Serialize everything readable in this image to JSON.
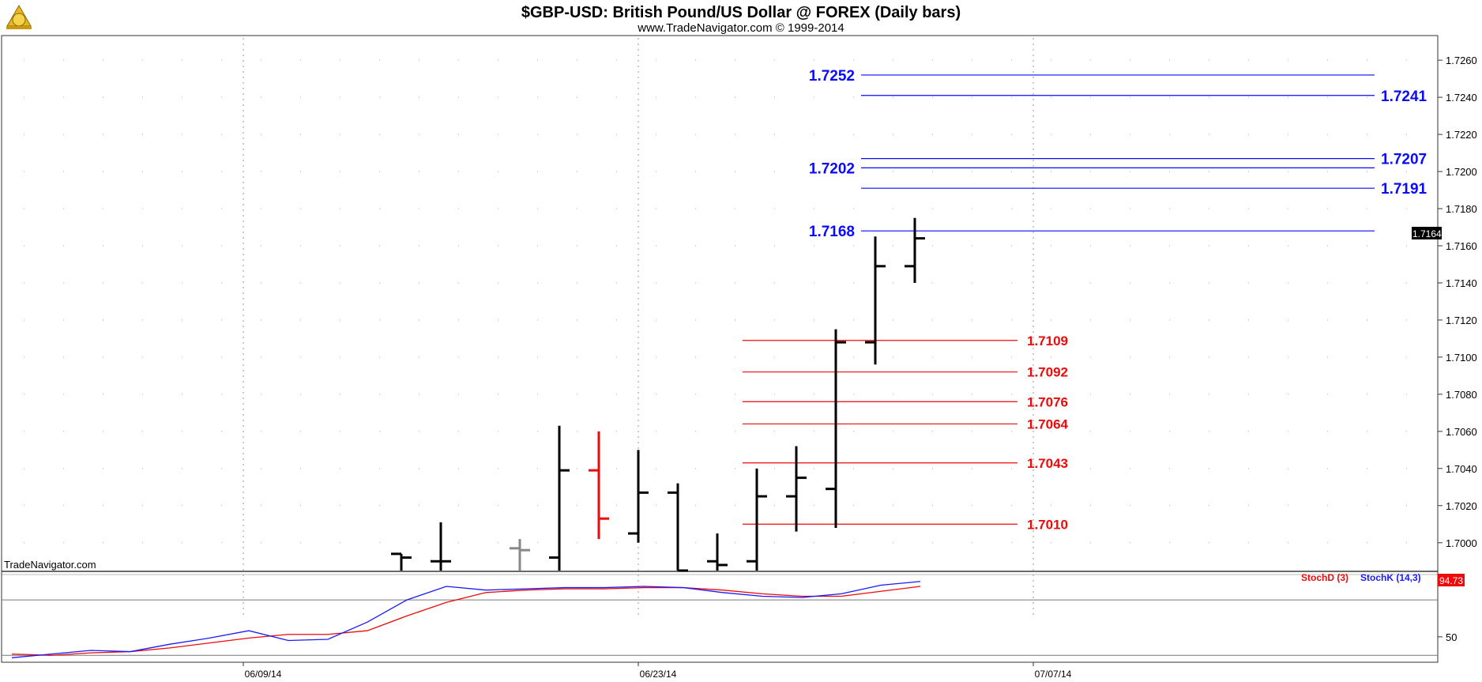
{
  "header": {
    "title": "$GBP-USD:  British Pound/US Dollar @ FOREX  (Daily bars)",
    "subtitle": "www.TradeNavigator.com © 1999-2014"
  },
  "watermark": "TradeNavigator.com",
  "colors": {
    "bar": "#000000",
    "bar_down": "#ee0a0a",
    "bar_inside": "#888888",
    "resistance": "#0a0aff",
    "support": "#ee0a0a",
    "stoch_d": "#ee0a0a",
    "stoch_k": "#1a1aff",
    "grid": "#999999"
  },
  "chart_data": {
    "type": "ohlc",
    "price_axis": {
      "ylim": [
        1.6985,
        1.7269
      ],
      "ticks": [
        "1.7260",
        "1.7240",
        "1.7220",
        "1.7200",
        "1.7180",
        "1.7160",
        "1.7140",
        "1.7120",
        "1.7100",
        "1.7080",
        "1.7060",
        "1.7040",
        "1.7020",
        "1.7000"
      ]
    },
    "last_price": "1.7164",
    "x_labels": [
      {
        "label": "06/09/14",
        "bar": 6
      },
      {
        "label": "06/23/14",
        "bar": 16
      },
      {
        "label": "07/07/14",
        "bar": 26
      }
    ],
    "bars": [
      {
        "i": 10,
        "open": 1.6994,
        "high": 1.6994,
        "low": 1.6985,
        "close": 1.6992,
        "color": "black"
      },
      {
        "i": 11,
        "open": 1.699,
        "high": 1.7011,
        "low": 1.6985,
        "close": 1.699,
        "color": "black"
      },
      {
        "i": 13,
        "open": 1.6997,
        "high": 1.7002,
        "low": 1.6985,
        "close": 1.6996,
        "color": "gray"
      },
      {
        "i": 14,
        "open": 1.6992,
        "high": 1.7063,
        "low": 1.6985,
        "close": 1.7039,
        "color": "black"
      },
      {
        "i": 15,
        "open": 1.7039,
        "high": 1.706,
        "low": 1.7002,
        "close": 1.7013,
        "color": "red"
      },
      {
        "i": 16,
        "open": 1.7005,
        "high": 1.705,
        "low": 1.7,
        "close": 1.7027,
        "color": "black"
      },
      {
        "i": 17,
        "open": 1.7027,
        "high": 1.7032,
        "low": 1.6985,
        "close": 1.6985,
        "color": "black"
      },
      {
        "i": 18,
        "open": 1.699,
        "high": 1.7005,
        "low": 1.6985,
        "close": 1.6988,
        "color": "black"
      },
      {
        "i": 19,
        "open": 1.699,
        "high": 1.704,
        "low": 1.6985,
        "close": 1.7025,
        "color": "black"
      },
      {
        "i": 20,
        "open": 1.7025,
        "high": 1.7052,
        "low": 1.7006,
        "close": 1.7035,
        "color": "black"
      },
      {
        "i": 21,
        "open": 1.7029,
        "high": 1.7115,
        "low": 1.7008,
        "close": 1.7108,
        "color": "black"
      },
      {
        "i": 22,
        "open": 1.7108,
        "high": 1.7165,
        "low": 1.7096,
        "close": 1.7149,
        "color": "black"
      },
      {
        "i": 23,
        "open": 1.7149,
        "high": 1.7175,
        "low": 1.714,
        "close": 1.7164,
        "color": "black"
      }
    ],
    "resistance_levels": [
      {
        "value": "1.7252",
        "start_bar": 21.0,
        "label_side": "left"
      },
      {
        "value": "1.7241",
        "start_bar": 21.0,
        "label_side": "right"
      },
      {
        "value": "1.7207",
        "start_bar": 21.0,
        "label_side": "right"
      },
      {
        "value": "1.7202",
        "start_bar": 21.0,
        "label_side": "left"
      },
      {
        "value": "1.7191",
        "start_bar": 21.0,
        "label_side": "right"
      },
      {
        "value": "1.7168",
        "start_bar": 21.0,
        "label_side": "left"
      }
    ],
    "resistance_end_bar": 34.0,
    "support_levels": [
      {
        "value": "1.7109"
      },
      {
        "value": "1.7092"
      },
      {
        "value": "1.7076"
      },
      {
        "value": "1.7064"
      },
      {
        "value": "1.7043"
      },
      {
        "value": "1.7010"
      }
    ],
    "support_start_bar": 18.0,
    "support_end_bar": 25.6,
    "stochastic": {
      "ylim": [
        30,
        100
      ],
      "ticks": [
        "50"
      ],
      "reference_level": 80,
      "legend_d": "StochD (3)",
      "legend_k": "StochK (14,3)",
      "last_value": "94.73",
      "bars": [
        0,
        1,
        2,
        3,
        4,
        5,
        6,
        7,
        8,
        9,
        10,
        11,
        12,
        13,
        14,
        15,
        16,
        17,
        18,
        19,
        20,
        21,
        22,
        23
      ],
      "k": [
        33,
        36,
        39,
        38,
        44,
        49,
        55,
        47,
        48,
        62,
        80,
        91,
        88,
        89,
        90,
        90,
        91,
        90,
        86,
        83,
        82,
        85,
        92,
        95
      ],
      "d": [
        36,
        35,
        37,
        38,
        41,
        45,
        49,
        52,
        52,
        55,
        67,
        78,
        86,
        88,
        89,
        89,
        90,
        90,
        88,
        85,
        83,
        83,
        87,
        91
      ]
    }
  }
}
